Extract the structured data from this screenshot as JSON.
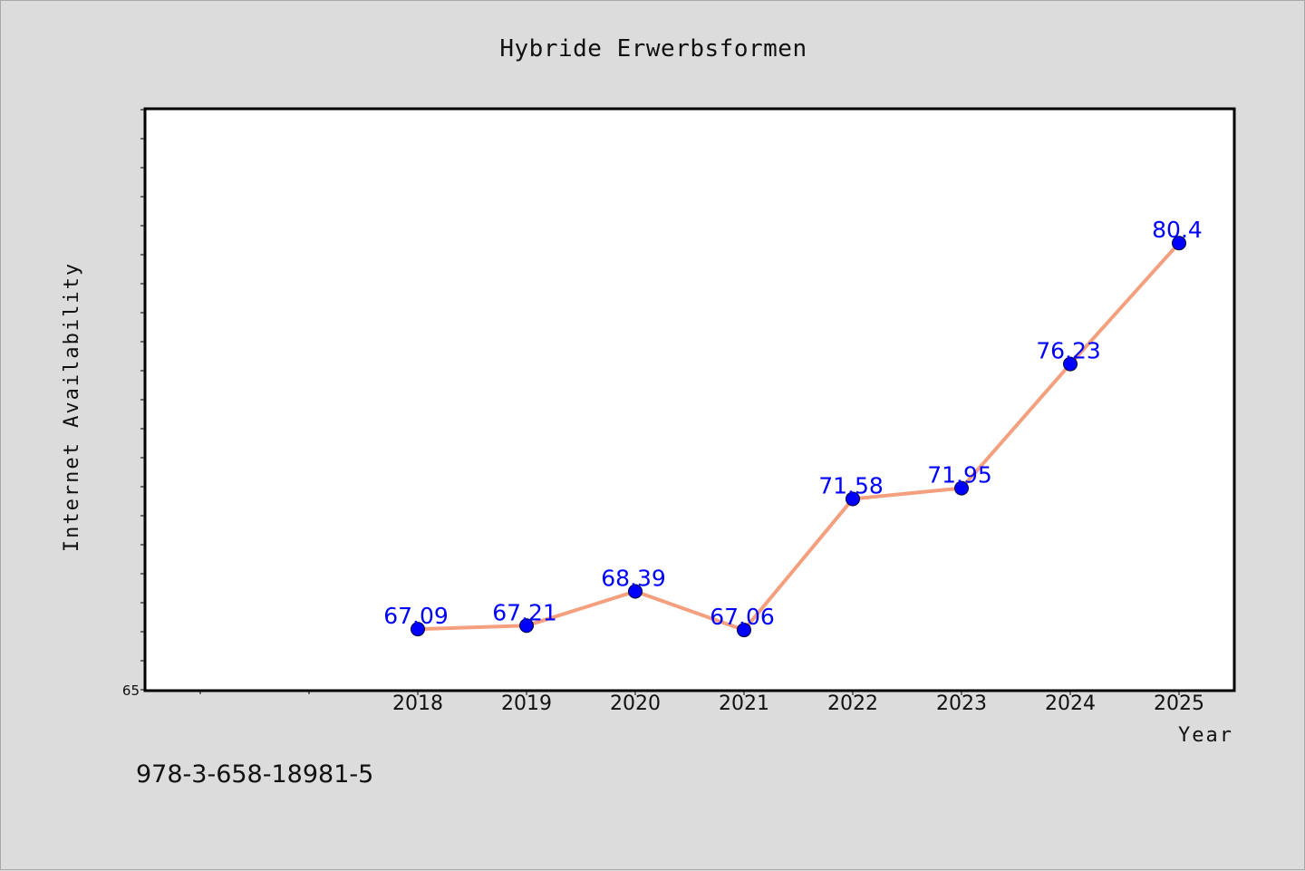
{
  "chart_data": {
    "type": "line",
    "title": "Hybride Erwerbsformen",
    "xlabel": "Year",
    "ylabel": "Internet Availability",
    "categories": [
      "2018",
      "2019",
      "2020",
      "2021",
      "2022",
      "2023",
      "2024",
      "2025"
    ],
    "values": [
      67.09,
      67.21,
      68.39,
      67.06,
      71.58,
      71.95,
      76.23,
      80.4
    ],
    "value_labels": [
      "67.09",
      "67.21",
      "68.39",
      "67.06",
      "71.58",
      "71.95",
      "76.23",
      "80.4"
    ],
    "ylim": [
      65,
      85
    ],
    "ytick_labels": [
      "65"
    ],
    "grid": false,
    "legend": "none",
    "line_color": "#f4a07e",
    "marker_color": "#0000ff",
    "label_color": "#0000ff"
  },
  "footnote": "978-3-658-18981-5"
}
